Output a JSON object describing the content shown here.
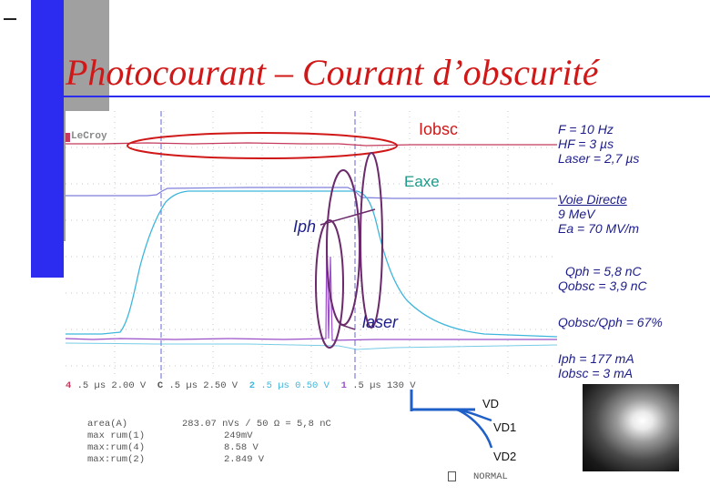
{
  "slide": {
    "title": "Photocourant – Courant d’obscurité"
  },
  "colors": {
    "title": "#d01818",
    "trace_iobsc": "#c43a5c",
    "trace_iph": "#3fb6dc",
    "trace_eaxe": "#7e7edc",
    "trace_laser": "#9a4fc8",
    "annotation_ellipse_red": "#d01818",
    "annotation_ellipse_purple": "#6b2a6b",
    "notes_text": "#1d1d8a",
    "diagram": "#1f5fc8"
  },
  "oscilloscope": {
    "brand": "LeCroy",
    "labels": {
      "iobsc": "Iobsc",
      "eaxe": "Eaxe",
      "iph": "Iph",
      "laser": "laser"
    },
    "channel_row": [
      {
        "id": "4",
        "text": ".5 µs 2.00 V"
      },
      {
        "id": "C",
        "text": ".5 µs 2.50 V"
      },
      {
        "id": "2",
        "text": ".5 µs 0.50 V"
      },
      {
        "id": "1",
        "text": ".5 µs 130 V"
      }
    ],
    "measurements": [
      {
        "label": "area(A)",
        "value": "283.07 nVs / 50 Ω = 5,8 nC"
      },
      {
        "label": "max rum(1)",
        "value": "249mV"
      },
      {
        "label": "max:rum(4)",
        "value": "8.58 V"
      },
      {
        "label": "max:rum(2)",
        "value": "2.849 V"
      }
    ],
    "mode": "NORMAL"
  },
  "notes": {
    "block1": [
      "F = 10 Hz",
      "HF = 3 µs",
      "Laser = 2,7 µs"
    ],
    "block2": [
      "Voie Directe",
      "9 MeV",
      "Ea = 70 MV/m"
    ],
    "block3": [
      "Qph = 5,8 nC",
      "Qobsc = 3,9 nC"
    ],
    "block4": [
      "Qobsc/Qph = 67%"
    ],
    "block5": [
      "Iph = 177 mA",
      "Iobsc = 3 mA"
    ]
  },
  "diagram": {
    "vd": "VD",
    "vd1": "VD1",
    "vd2": "VD2"
  }
}
